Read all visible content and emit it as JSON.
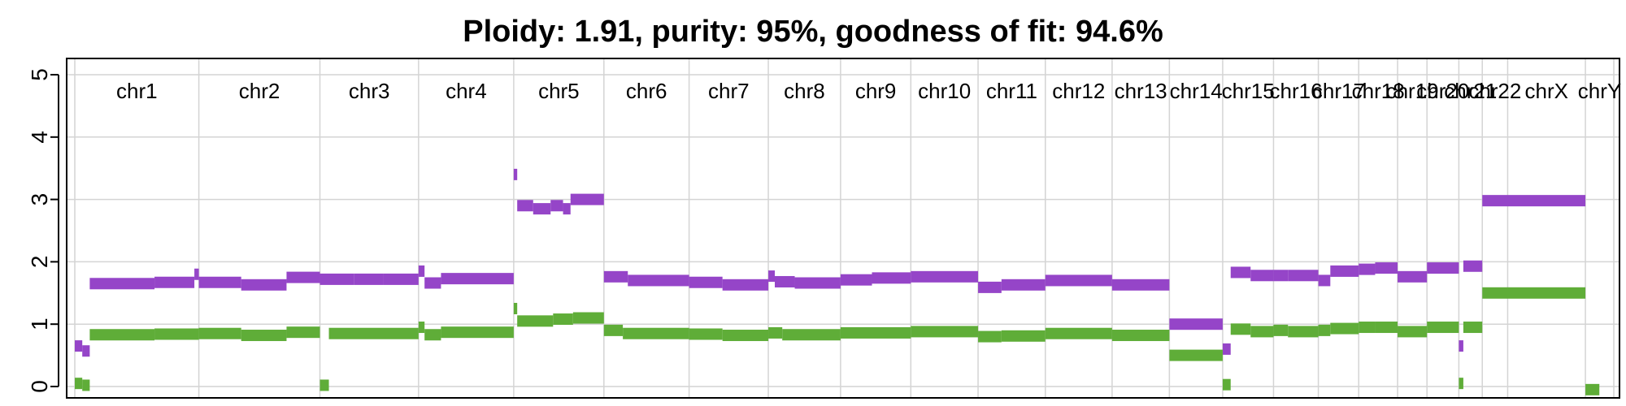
{
  "chart_data": {
    "type": "scatter",
    "title": "Ploidy: 1.91, purity: 95%, goodness of fit: 94.6%",
    "xlabel": "",
    "ylabel": "",
    "ylim": [
      0,
      5
    ],
    "yticks": [
      0,
      1,
      2,
      3,
      4,
      5
    ],
    "grid": true,
    "legend": "none",
    "colors": {
      "total": "#9545c8",
      "minor": "#5fad38",
      "grid": "#d4d4d4"
    },
    "chromosomes": [
      {
        "name": "chr1",
        "start": 0,
        "end": 249
      },
      {
        "name": "chr2",
        "start": 249,
        "end": 492
      },
      {
        "name": "chr3",
        "start": 492,
        "end": 690
      },
      {
        "name": "chr4",
        "start": 690,
        "end": 881
      },
      {
        "name": "chr5",
        "start": 881,
        "end": 1062
      },
      {
        "name": "chr6",
        "start": 1062,
        "end": 1233
      },
      {
        "name": "chr7",
        "start": 1233,
        "end": 1392
      },
      {
        "name": "chr8",
        "start": 1392,
        "end": 1537
      },
      {
        "name": "chr9",
        "start": 1537,
        "end": 1678
      },
      {
        "name": "chr10",
        "start": 1678,
        "end": 1813
      },
      {
        "name": "chr11",
        "start": 1813,
        "end": 1948
      },
      {
        "name": "chr12",
        "start": 1948,
        "end": 2082
      },
      {
        "name": "chr13",
        "start": 2082,
        "end": 2197
      },
      {
        "name": "chr14",
        "start": 2197,
        "end": 2304
      },
      {
        "name": "chr15",
        "start": 2304,
        "end": 2406
      },
      {
        "name": "chr16",
        "start": 2406,
        "end": 2496
      },
      {
        "name": "chr17",
        "start": 2496,
        "end": 2577
      },
      {
        "name": "chr18",
        "start": 2577,
        "end": 2655
      },
      {
        "name": "chr19",
        "start": 2655,
        "end": 2714
      },
      {
        "name": "chr20",
        "start": 2714,
        "end": 2778
      },
      {
        "name": "chr21",
        "start": 2778,
        "end": 2825
      },
      {
        "name": "chr22",
        "start": 2825,
        "end": 2876
      },
      {
        "name": "chrX",
        "start": 2876,
        "end": 3032
      },
      {
        "name": "chrY",
        "start": 3032,
        "end": 3089
      }
    ],
    "series": [
      {
        "name": "",
        "segments": [
          [
            0,
            15,
            0.65
          ],
          [
            15,
            30,
            0.57
          ],
          [
            30,
            160,
            1.65
          ],
          [
            160,
            240,
            1.67
          ],
          [
            240,
            249,
            1.8
          ],
          [
            249,
            334,
            1.67
          ],
          [
            334,
            425,
            1.63
          ],
          [
            425,
            492,
            1.75
          ],
          [
            492,
            560,
            1.72
          ],
          [
            560,
            620,
            1.72
          ],
          [
            620,
            690,
            1.72
          ],
          [
            690,
            702,
            1.85
          ],
          [
            702,
            735,
            1.66
          ],
          [
            735,
            881,
            1.73
          ],
          [
            881,
            888,
            3.4
          ],
          [
            888,
            920,
            2.9
          ],
          [
            920,
            955,
            2.85
          ],
          [
            955,
            980,
            2.9
          ],
          [
            980,
            995,
            2.85
          ],
          [
            995,
            1062,
            3.0
          ],
          [
            1062,
            1110,
            1.76
          ],
          [
            1110,
            1233,
            1.7
          ],
          [
            1233,
            1300,
            1.67
          ],
          [
            1300,
            1392,
            1.63
          ],
          [
            1392,
            1405,
            1.77
          ],
          [
            1405,
            1445,
            1.68
          ],
          [
            1445,
            1537,
            1.66
          ],
          [
            1537,
            1600,
            1.71
          ],
          [
            1600,
            1678,
            1.74
          ],
          [
            1678,
            1813,
            1.76
          ],
          [
            1813,
            1860,
            1.59
          ],
          [
            1860,
            1948,
            1.63
          ],
          [
            1948,
            2082,
            1.7
          ],
          [
            2082,
            2197,
            1.63
          ],
          [
            2197,
            2304,
            1.0
          ],
          [
            2304,
            2320,
            0.6
          ],
          [
            2320,
            2360,
            1.83
          ],
          [
            2360,
            2406,
            1.78
          ],
          [
            2406,
            2435,
            1.78
          ],
          [
            2435,
            2496,
            1.78
          ],
          [
            2496,
            2520,
            1.7
          ],
          [
            2520,
            2577,
            1.85
          ],
          [
            2577,
            2610,
            1.88
          ],
          [
            2610,
            2655,
            1.9
          ],
          [
            2655,
            2714,
            1.76
          ],
          [
            2714,
            2778,
            1.9
          ],
          [
            2778,
            2787,
            0.65
          ],
          [
            2787,
            2825,
            1.93
          ],
          [
            2825,
            3032,
            2.98
          ]
        ]
      },
      {
        "name": "",
        "segments": [
          [
            0,
            15,
            0.05
          ],
          [
            15,
            30,
            0.02
          ],
          [
            30,
            160,
            0.83
          ],
          [
            160,
            249,
            0.84
          ],
          [
            249,
            334,
            0.85
          ],
          [
            334,
            425,
            0.82
          ],
          [
            425,
            492,
            0.87
          ],
          [
            492,
            510,
            0.02
          ],
          [
            510,
            690,
            0.85
          ],
          [
            690,
            702,
            0.95
          ],
          [
            702,
            735,
            0.83
          ],
          [
            735,
            881,
            0.87
          ],
          [
            881,
            888,
            1.25
          ],
          [
            888,
            960,
            1.05
          ],
          [
            960,
            1000,
            1.08
          ],
          [
            1000,
            1062,
            1.1
          ],
          [
            1062,
            1100,
            0.9
          ],
          [
            1100,
            1233,
            0.85
          ],
          [
            1233,
            1300,
            0.84
          ],
          [
            1300,
            1392,
            0.82
          ],
          [
            1392,
            1420,
            0.86
          ],
          [
            1420,
            1537,
            0.83
          ],
          [
            1537,
            1678,
            0.86
          ],
          [
            1678,
            1813,
            0.88
          ],
          [
            1813,
            1860,
            0.8
          ],
          [
            1860,
            1948,
            0.81
          ],
          [
            1948,
            2082,
            0.85
          ],
          [
            2082,
            2197,
            0.82
          ],
          [
            2197,
            2304,
            0.5
          ],
          [
            2304,
            2320,
            0.03
          ],
          [
            2320,
            2360,
            0.92
          ],
          [
            2360,
            2406,
            0.88
          ],
          [
            2406,
            2435,
            0.9
          ],
          [
            2435,
            2496,
            0.88
          ],
          [
            2496,
            2520,
            0.9
          ],
          [
            2520,
            2577,
            0.93
          ],
          [
            2577,
            2610,
            0.95
          ],
          [
            2610,
            2655,
            0.95
          ],
          [
            2655,
            2714,
            0.88
          ],
          [
            2714,
            2778,
            0.95
          ],
          [
            2778,
            2787,
            0.05
          ],
          [
            2787,
            2825,
            0.95
          ],
          [
            2825,
            3032,
            1.5
          ],
          [
            3032,
            3060,
            -0.05
          ]
        ]
      }
    ]
  }
}
